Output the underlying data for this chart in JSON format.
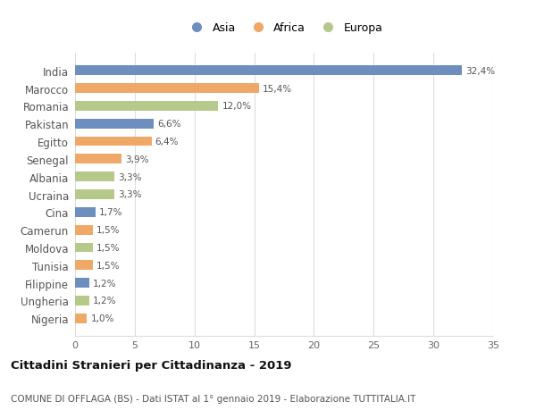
{
  "countries": [
    "India",
    "Marocco",
    "Romania",
    "Pakistan",
    "Egitto",
    "Senegal",
    "Albania",
    "Ucraina",
    "Cina",
    "Camerun",
    "Moldova",
    "Tunisia",
    "Filippine",
    "Ungheria",
    "Nigeria"
  ],
  "values": [
    32.4,
    15.4,
    12.0,
    6.6,
    6.4,
    3.9,
    3.3,
    3.3,
    1.7,
    1.5,
    1.5,
    1.5,
    1.2,
    1.2,
    1.0
  ],
  "labels": [
    "32,4%",
    "15,4%",
    "12,0%",
    "6,6%",
    "6,4%",
    "3,9%",
    "3,3%",
    "3,3%",
    "1,7%",
    "1,5%",
    "1,5%",
    "1,5%",
    "1,2%",
    "1,2%",
    "1,0%"
  ],
  "continents": [
    "Asia",
    "Africa",
    "Europa",
    "Asia",
    "Africa",
    "Africa",
    "Europa",
    "Europa",
    "Asia",
    "Africa",
    "Europa",
    "Africa",
    "Asia",
    "Europa",
    "Africa"
  ],
  "colors": {
    "Asia": "#6d8ebf",
    "Africa": "#f0a868",
    "Europa": "#b5c98a"
  },
  "xlim": [
    0,
    35
  ],
  "xticks": [
    0,
    5,
    10,
    15,
    20,
    25,
    30,
    35
  ],
  "title": "Cittadini Stranieri per Cittadinanza - 2019",
  "subtitle": "COMUNE DI OFFLAGA (BS) - Dati ISTAT al 1° gennaio 2019 - Elaborazione TUTTITALIA.IT",
  "background_color": "#ffffff",
  "grid_color": "#dddddd",
  "bar_height": 0.55
}
